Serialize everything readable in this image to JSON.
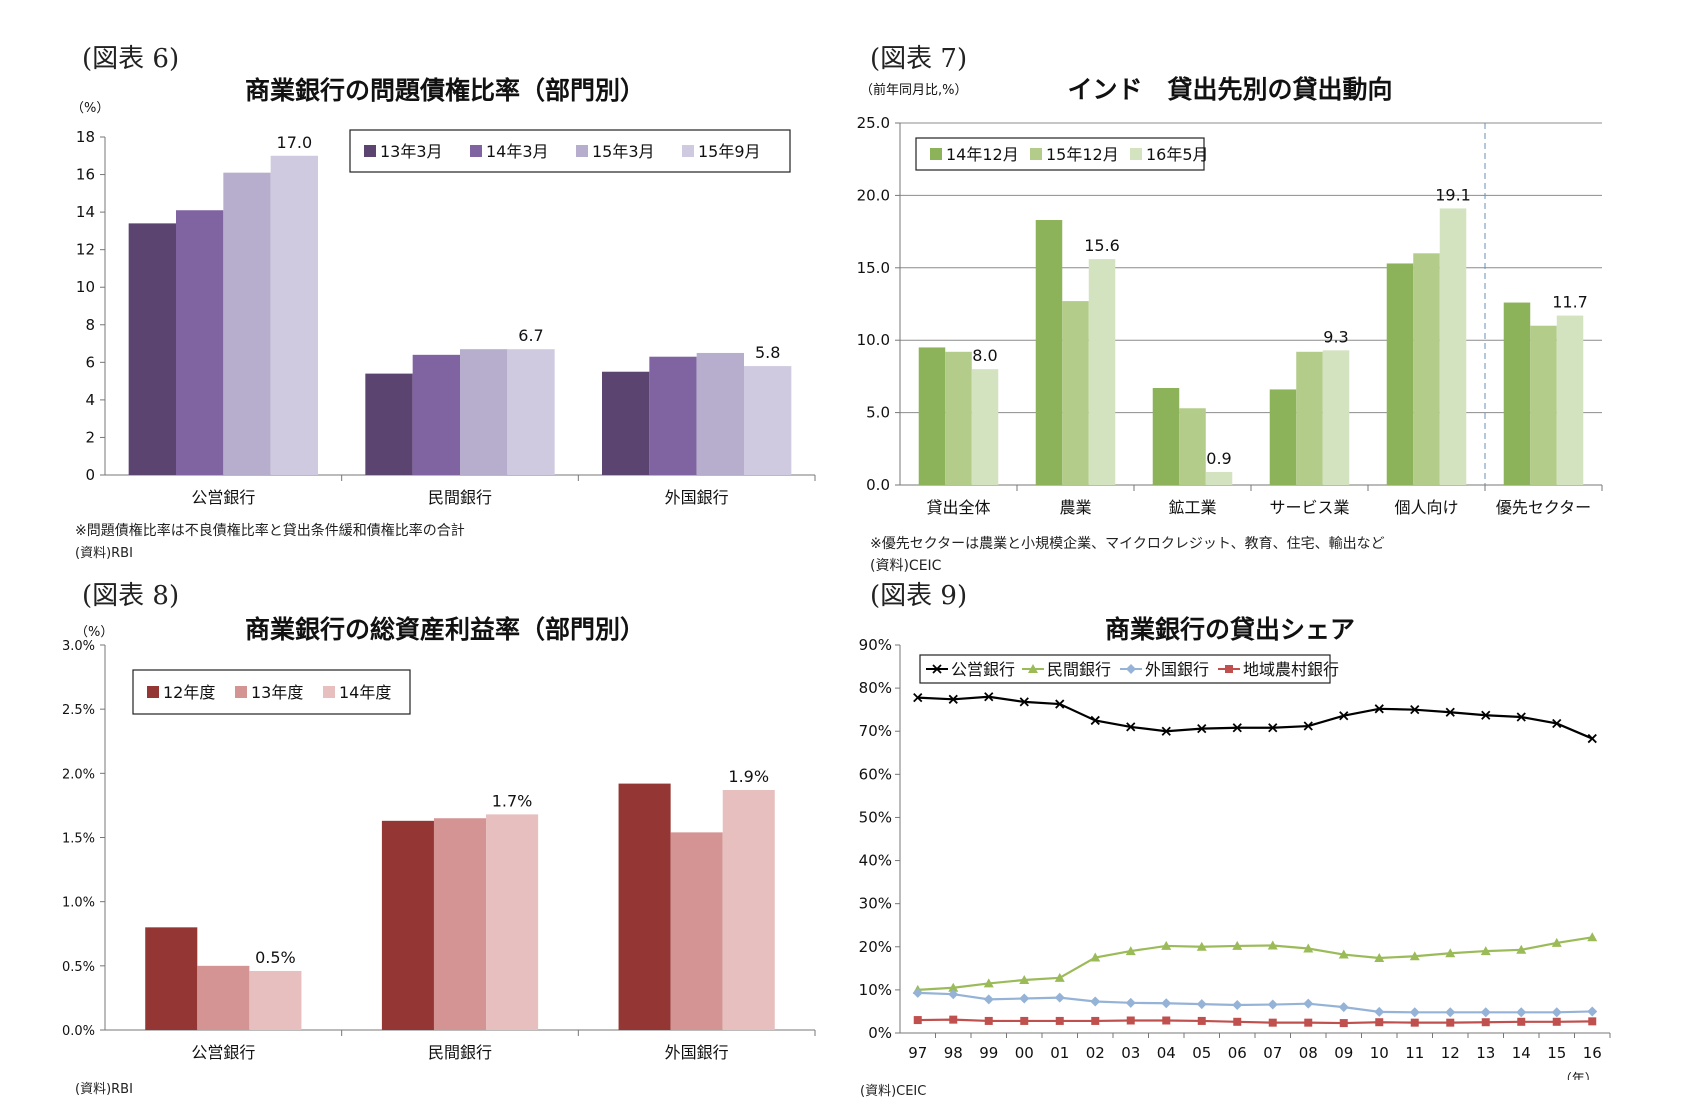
{
  "figures": [
    {
      "fig_label": "(図表 6)",
      "notes": [
        "※問題債権比率は不良債権比率と貸出条件緩和債権比率の合計",
        "(資料)RBI"
      ]
    },
    {
      "fig_label": "(図表 7)",
      "notes": [
        "※優先セクターは農業と小規模企業、マイクロクレジット、教育、住宅、輸出など",
        "(資料)CEIC"
      ]
    },
    {
      "fig_label": "(図表 8)",
      "notes": [
        "(資料)RBI"
      ]
    },
    {
      "fig_label": "(図表 9)",
      "notes": [
        "(資料)CEIC"
      ]
    }
  ],
  "chart_data": [
    {
      "type": "bar",
      "title": "商業銀行の問題債権比率（部門別）",
      "unit_label": "（%）",
      "categories": [
        "公営銀行",
        "民間銀行",
        "外国銀行"
      ],
      "series": [
        {
          "name": "13年3月",
          "color": "#5b4470",
          "values": [
            13.4,
            5.4,
            5.5
          ]
        },
        {
          "name": "14年3月",
          "color": "#8064a2",
          "values": [
            14.1,
            6.4,
            6.3
          ]
        },
        {
          "name": "15年3月",
          "color": "#b7aecd",
          "values": [
            16.1,
            6.7,
            6.5
          ]
        },
        {
          "name": "15年9月",
          "color": "#d0cae0",
          "values": [
            17.0,
            6.7,
            5.8
          ]
        }
      ],
      "data_labels": [
        {
          "series": 3,
          "category": 0,
          "text": "17.0"
        },
        {
          "series": 3,
          "category": 1,
          "text": "6.7"
        },
        {
          "series": 3,
          "category": 2,
          "text": "5.8"
        }
      ],
      "ylim": [
        0,
        18
      ],
      "yticks": [
        "0",
        "2",
        "4",
        "6",
        "8",
        "10",
        "12",
        "14",
        "16",
        "18"
      ],
      "legend": "top-right"
    },
    {
      "type": "bar",
      "title": "インド　貸出先別の貸出動向",
      "unit_label": "（前年同月比,%）",
      "categories": [
        "貸出全体",
        "農業",
        "鉱工業",
        "サービス業",
        "個人向け",
        "優先セクター"
      ],
      "series": [
        {
          "name": "14年12月",
          "color": "#8db35a",
          "values": [
            9.5,
            18.3,
            6.7,
            6.6,
            15.3,
            12.6
          ]
        },
        {
          "name": "15年12月",
          "color": "#b3cc8a",
          "values": [
            9.2,
            12.7,
            5.3,
            9.2,
            16.0,
            11.0
          ]
        },
        {
          "name": "16年5月",
          "color": "#d4e3bf",
          "values": [
            8.0,
            15.6,
            0.9,
            9.3,
            19.1,
            11.7
          ]
        }
      ],
      "data_labels": [
        {
          "series": 2,
          "category": 0,
          "text": "8.0"
        },
        {
          "series": 2,
          "category": 1,
          "text": "15.6"
        },
        {
          "series": 2,
          "category": 2,
          "text": "0.9"
        },
        {
          "series": 2,
          "category": 3,
          "text": "9.3"
        },
        {
          "series": 2,
          "category": 4,
          "text": "19.1"
        },
        {
          "series": 2,
          "category": 5,
          "text": "11.7"
        }
      ],
      "ylim": [
        0,
        25
      ],
      "yticks": [
        "0.0",
        "5.0",
        "10.0",
        "15.0",
        "20.0",
        "25.0"
      ],
      "grid": true,
      "legend": "top-left"
    },
    {
      "type": "bar",
      "title": "商業銀行の総資産利益率（部門別）",
      "unit_label": "（%）",
      "categories": [
        "公営銀行",
        "民間銀行",
        "外国銀行"
      ],
      "series": [
        {
          "name": "12年度",
          "color": "#943634",
          "values": [
            0.8,
            1.63,
            1.92
          ]
        },
        {
          "name": "13年度",
          "color": "#d49493",
          "values": [
            0.5,
            1.65,
            1.54
          ]
        },
        {
          "name": "14年度",
          "color": "#e6bfbe",
          "values": [
            0.46,
            1.68,
            1.87
          ]
        }
      ],
      "data_labels": [
        {
          "series": 2,
          "category": 0,
          "text": "0.5%"
        },
        {
          "series": 2,
          "category": 1,
          "text": "1.7%"
        },
        {
          "series": 2,
          "category": 2,
          "text": "1.9%"
        }
      ],
      "ylim": [
        0,
        3.0
      ],
      "yticks": [
        "0.0%",
        "0.5%",
        "1.0%",
        "1.5%",
        "2.0%",
        "2.5%",
        "3.0%"
      ],
      "legend": "top-left"
    },
    {
      "type": "line",
      "title": "商業銀行の貸出シェア",
      "x": [
        "97",
        "98",
        "99",
        "00",
        "01",
        "02",
        "03",
        "04",
        "05",
        "06",
        "07",
        "08",
        "09",
        "10",
        "11",
        "12",
        "13",
        "14",
        "15",
        "16"
      ],
      "xlabel": "（年）",
      "series": [
        {
          "name": "公営銀行",
          "color": "#000000",
          "marker": "x",
          "values": [
            77.8,
            77.4,
            78.0,
            76.8,
            76.3,
            72.5,
            71.0,
            70.0,
            70.6,
            70.8,
            70.8,
            71.2,
            73.6,
            75.2,
            75.0,
            74.4,
            73.7,
            73.3,
            71.8,
            68.3
          ]
        },
        {
          "name": "民間銀行",
          "color": "#9bbb59",
          "marker": "triangle",
          "values": [
            10.0,
            10.5,
            11.5,
            12.3,
            12.8,
            17.5,
            19.0,
            20.2,
            20.0,
            20.2,
            20.3,
            19.6,
            18.2,
            17.4,
            17.8,
            18.5,
            19.0,
            19.3,
            20.9,
            22.2
          ]
        },
        {
          "name": "外国銀行",
          "color": "#95b3d7",
          "marker": "diamond",
          "values": [
            9.3,
            9.0,
            7.8,
            8.0,
            8.2,
            7.3,
            7.0,
            6.9,
            6.7,
            6.5,
            6.6,
            6.8,
            6.0,
            4.9,
            4.8,
            4.8,
            4.8,
            4.8,
            4.8,
            5.0
          ]
        },
        {
          "name": "地域農村銀行",
          "color": "#c0504d",
          "marker": "square",
          "values": [
            3.0,
            3.1,
            2.8,
            2.8,
            2.8,
            2.8,
            2.9,
            2.9,
            2.8,
            2.6,
            2.4,
            2.4,
            2.3,
            2.5,
            2.4,
            2.4,
            2.5,
            2.6,
            2.6,
            2.7
          ]
        }
      ],
      "ylim": [
        0,
        90
      ],
      "yticks": [
        "0%",
        "10%",
        "20%",
        "30%",
        "40%",
        "50%",
        "60%",
        "70%",
        "80%",
        "90%"
      ],
      "grid": false,
      "legend": "top-center"
    }
  ]
}
